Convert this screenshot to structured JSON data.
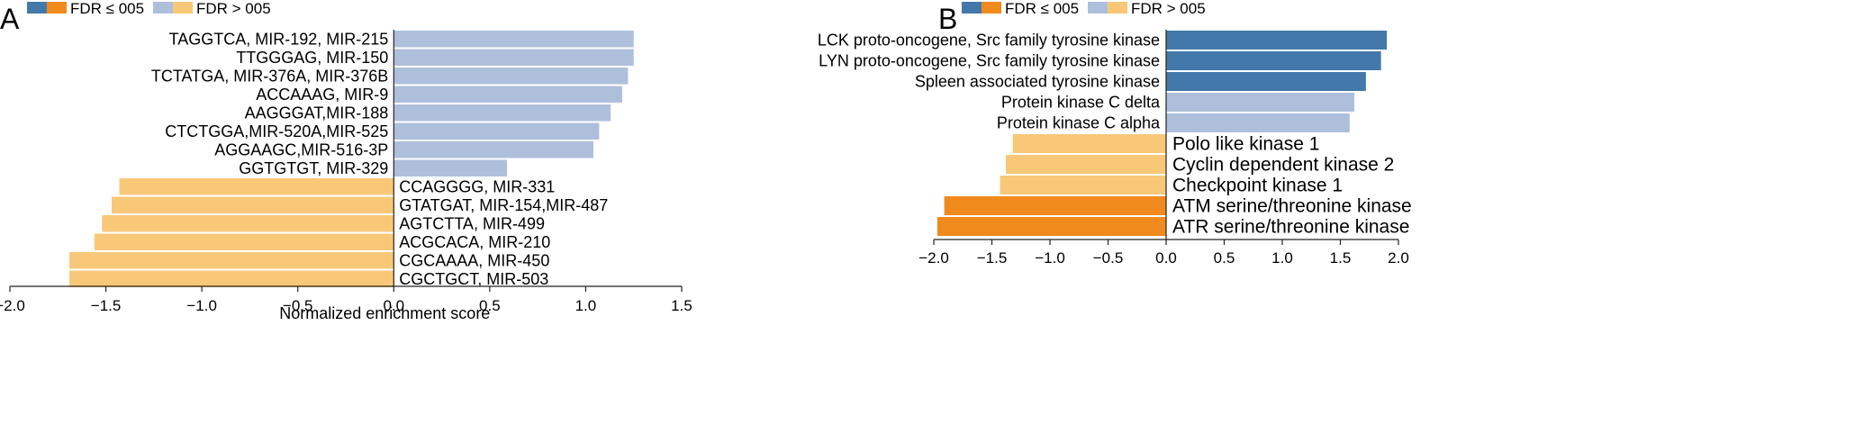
{
  "colors": {
    "up_sig": "#4378aa",
    "up_nonsig": "#aebfdc",
    "down_sig": "#f08a1d",
    "down_nonsig": "#f8c878",
    "axis": "#222222",
    "bar_border": "#ffffff"
  },
  "legend": {
    "sig_label": "FDR ≤ 005",
    "nonsig_label": "FDR > 005"
  },
  "chart_data": [
    {
      "panel": "A",
      "type": "bar",
      "orientation": "horizontal",
      "xlabel": "Normalized enrichment score",
      "xlim": [
        -2.0,
        1.5
      ],
      "xticks": [
        -2.0,
        -1.5,
        -1.0,
        -0.5,
        0.0,
        0.5,
        1.0,
        1.5
      ],
      "xtick_labels": [
        "−2.0",
        "−1.5",
        "−1.0",
        "−0.5",
        "0.0",
        "0.5",
        "1.0",
        "1.5"
      ],
      "grid": false,
      "bars": [
        {
          "label": "TAGGTCA, MIR-192, MIR-215",
          "value": 1.25,
          "significant": false
        },
        {
          "label": "TTGGGAG, MIR-150",
          "value": 1.25,
          "significant": false
        },
        {
          "label": "TCTATGA, MIR-376A, MIR-376B",
          "value": 1.22,
          "significant": false
        },
        {
          "label": "ACCAAAG, MIR-9",
          "value": 1.19,
          "significant": false
        },
        {
          "label": "AAGGGAT,MIR-188",
          "value": 1.13,
          "significant": false
        },
        {
          "label": "CTCTGGA,MIR-520A,MIR-525",
          "value": 1.07,
          "significant": false
        },
        {
          "label": "AGGAAGC,MIR-516-3P",
          "value": 1.04,
          "significant": false
        },
        {
          "label": "GGTGTGT, MIR-329",
          "value": 0.59,
          "significant": false
        },
        {
          "label": "CCAGGGG, MIR-331",
          "value": -1.43,
          "significant": false
        },
        {
          "label": "GTATGAT, MIR-154,MIR-487",
          "value": -1.47,
          "significant": false
        },
        {
          "label": "AGTCTTA, MIR-499",
          "value": -1.52,
          "significant": false
        },
        {
          "label": "ACGCACA, MIR-210",
          "value": -1.56,
          "significant": false
        },
        {
          "label": "CGCAAAA, MIR-450",
          "value": -1.69,
          "significant": false
        },
        {
          "label": "CGCTGCT, MIR-503",
          "value": -1.69,
          "significant": false
        }
      ]
    },
    {
      "panel": "B",
      "type": "bar",
      "orientation": "horizontal",
      "xlabel": "",
      "xlim": [
        -2.0,
        2.0
      ],
      "xticks": [
        -2.0,
        -1.5,
        -1.0,
        -0.5,
        0.0,
        0.5,
        1.0,
        1.5,
        2.0
      ],
      "xtick_labels": [
        "−2.0",
        "−1.5",
        "−1.0",
        "−0.5",
        "0.0",
        "0.5",
        "1.0",
        "1.5",
        "2.0"
      ],
      "grid": false,
      "bars": [
        {
          "label": "LCK proto-oncogene, Src family tyrosine kinase",
          "value": 1.9,
          "significant": true
        },
        {
          "label": "LYN proto-oncogene, Src family tyrosine kinase",
          "value": 1.85,
          "significant": true
        },
        {
          "label": "Spleen associated tyrosine kinase",
          "value": 1.72,
          "significant": true
        },
        {
          "label": "Protein kinase C delta",
          "value": 1.62,
          "significant": false
        },
        {
          "label": "Protein kinase C alpha",
          "value": 1.58,
          "significant": false
        },
        {
          "label": "Polo like kinase 1",
          "value": -1.32,
          "significant": false
        },
        {
          "label": "Cyclin dependent kinase 2",
          "value": -1.38,
          "significant": false
        },
        {
          "label": "Checkpoint kinase 1",
          "value": -1.43,
          "significant": false
        },
        {
          "label": "ATM serine/threonine kinase",
          "value": -1.91,
          "significant": true
        },
        {
          "label": "ATR serine/threonine kinase",
          "value": -1.97,
          "significant": true
        }
      ]
    }
  ]
}
